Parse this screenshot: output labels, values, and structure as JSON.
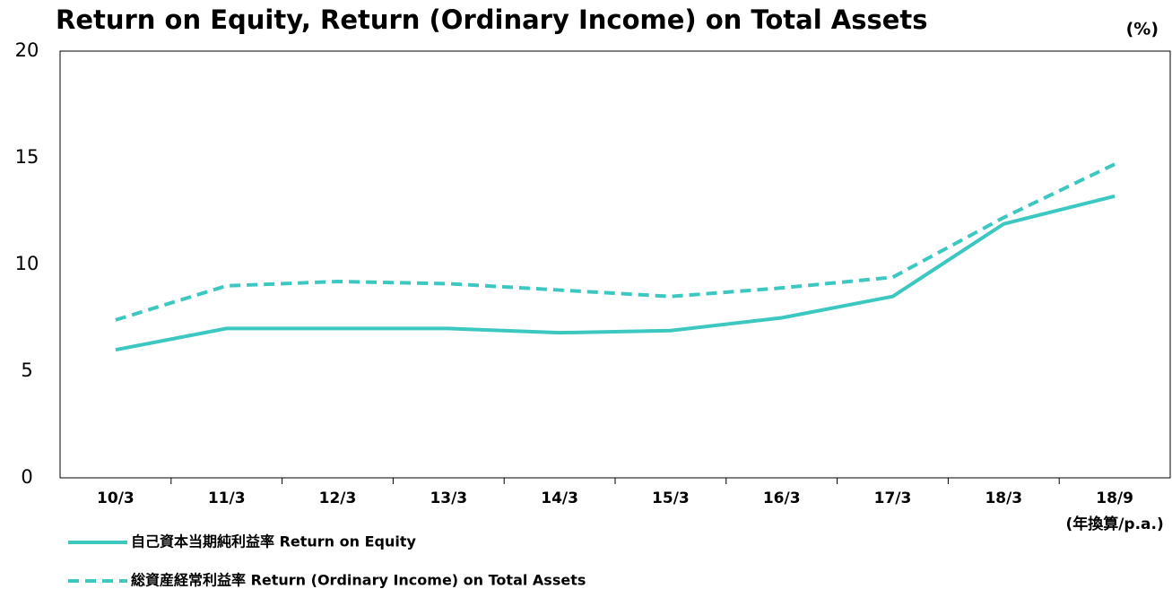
{
  "chart_data": {
    "type": "line",
    "title": "Return on Equity, Return (Ordinary Income) on Total Assets",
    "unit": "(%)",
    "categories": [
      "10/3",
      "11/3",
      "12/3",
      "13/3",
      "14/3",
      "15/3",
      "16/3",
      "17/3",
      "18/3",
      "18/9"
    ],
    "category_note": "(年換算/p.a.)",
    "series": [
      {
        "name": "自己資本当期純利益率  Return on Equity",
        "color": "#3cc8c0",
        "dash": false,
        "values": [
          6.0,
          7.0,
          7.0,
          7.0,
          6.8,
          6.9,
          7.5,
          8.5,
          11.9,
          13.2
        ]
      },
      {
        "name": "総資産経常利益率  Return (Ordinary Income) on Total Assets",
        "color": "#3cc8c0",
        "dash": true,
        "values": [
          7.4,
          9.0,
          9.2,
          9.1,
          8.8,
          8.5,
          8.9,
          9.4,
          12.2,
          14.7
        ]
      }
    ],
    "ylim": [
      0,
      20
    ],
    "yticks": [
      0,
      5,
      10,
      15,
      20
    ],
    "grid": false
  }
}
